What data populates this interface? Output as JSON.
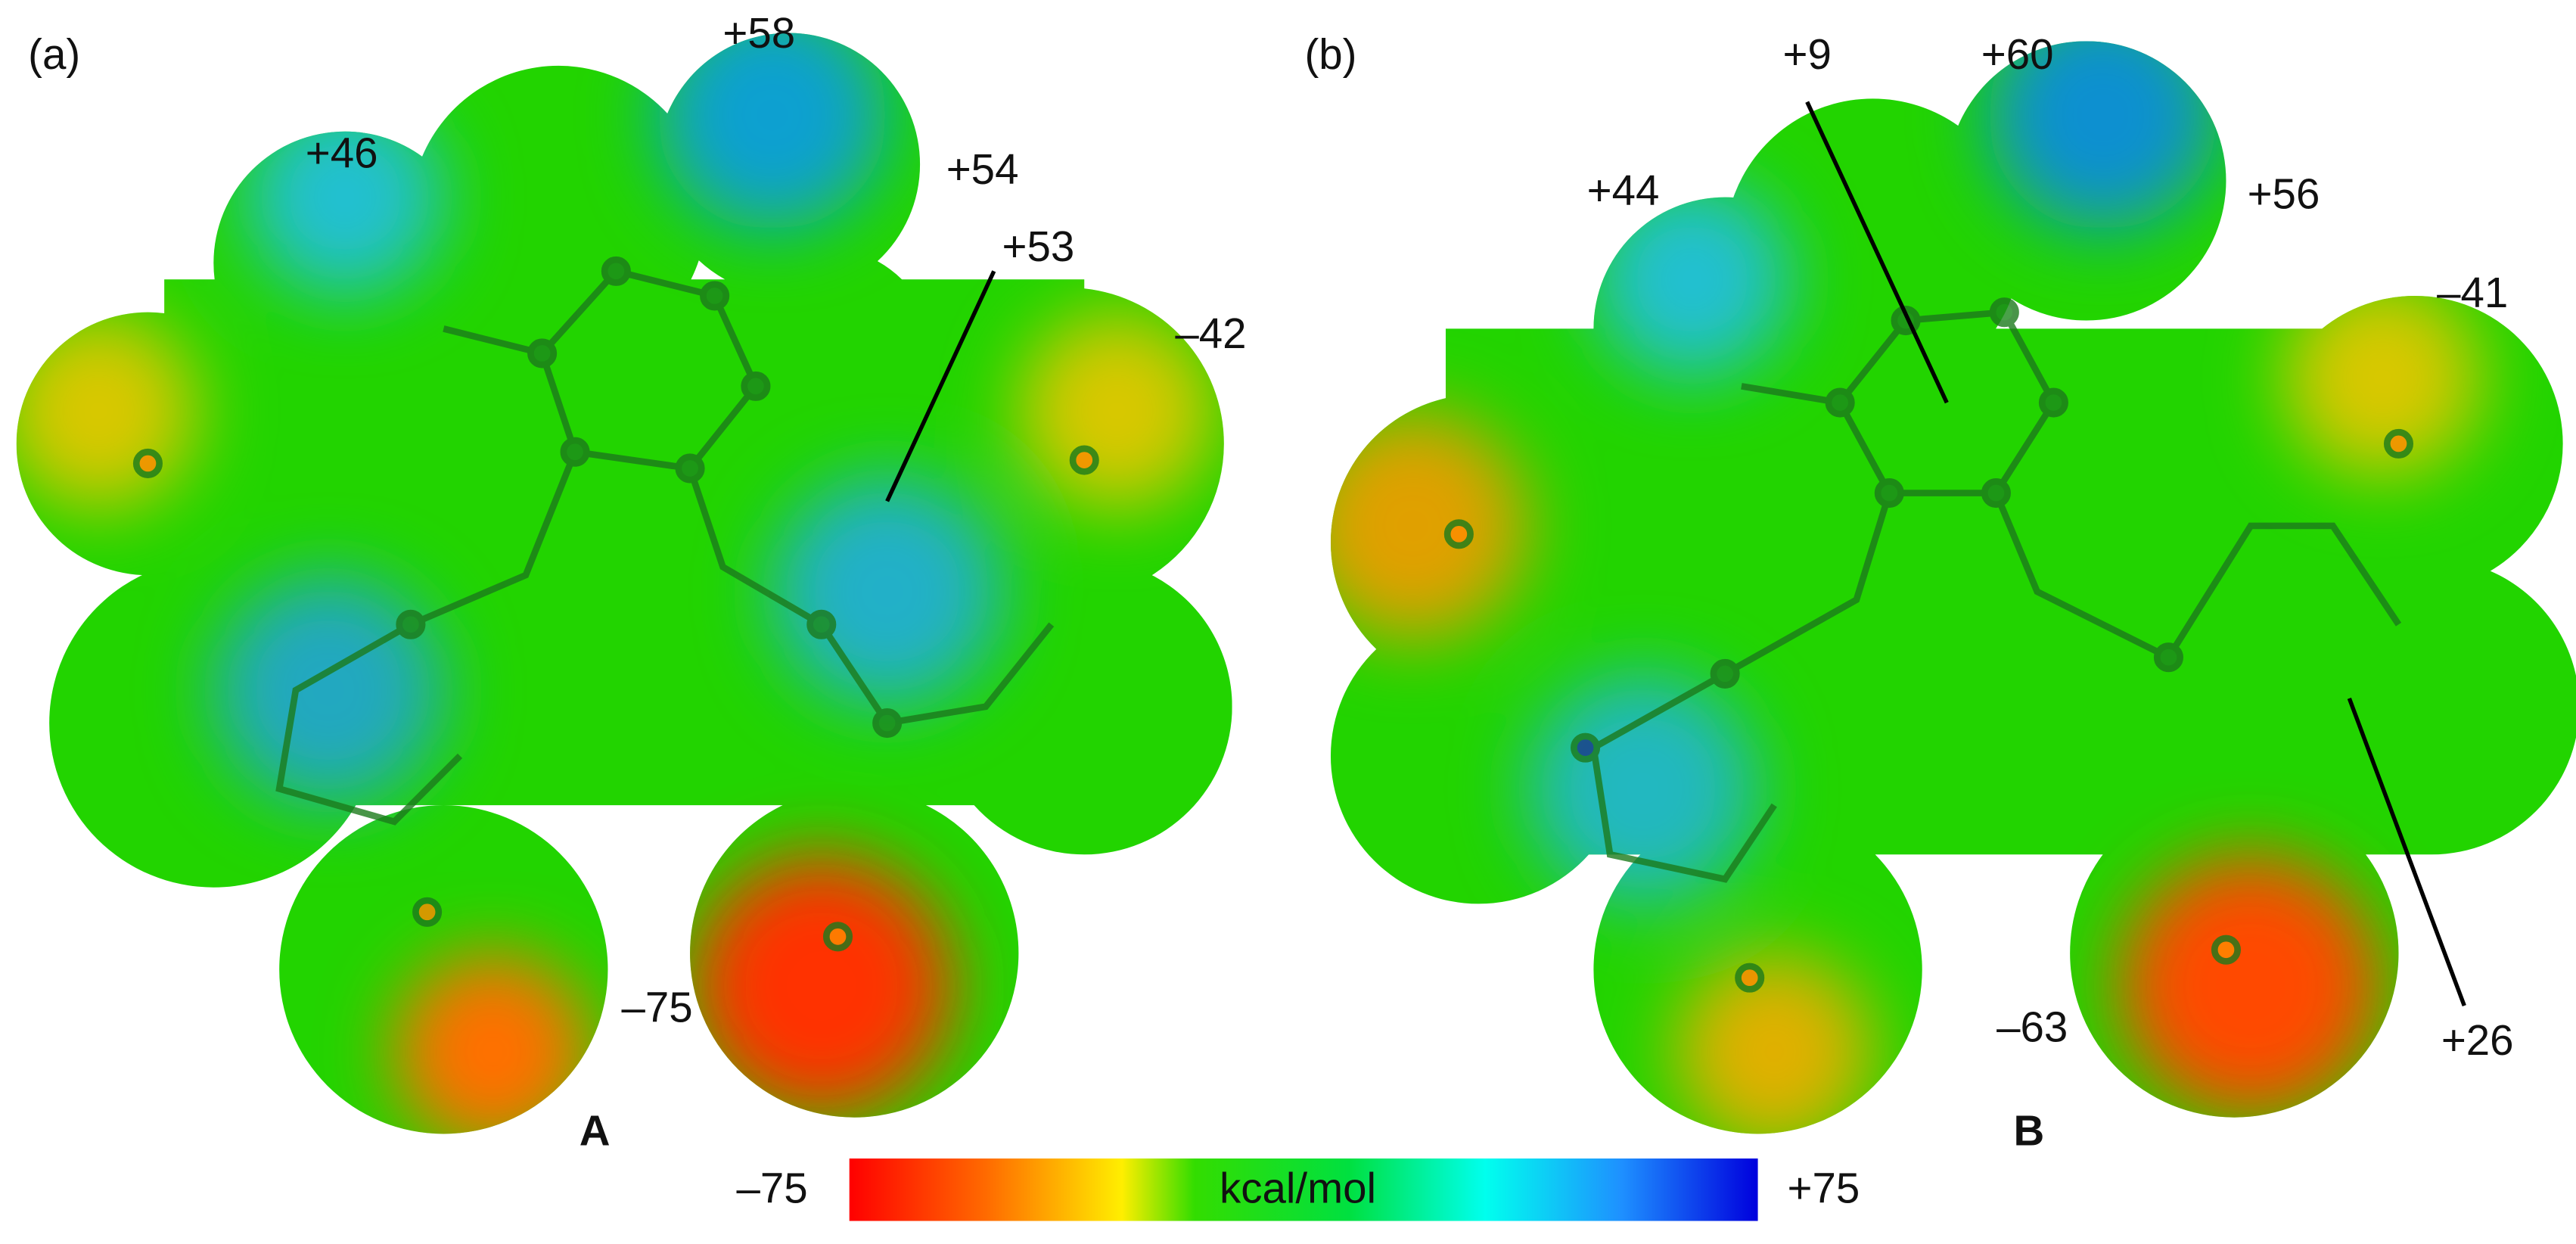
{
  "panels": [
    {
      "tag": "(a)",
      "name": "A",
      "annotations": [
        "+46",
        "+58",
        "+54",
        "+53",
        "–42",
        "–75"
      ]
    },
    {
      "tag": "(b)",
      "name": "B",
      "annotations": [
        "+9",
        "+60",
        "+44",
        "+56",
        "–41",
        "–63",
        "+26"
      ]
    }
  ],
  "colorbar": {
    "min_label": "–75",
    "unit": "kcal/mol",
    "max_label": "+75"
  }
}
